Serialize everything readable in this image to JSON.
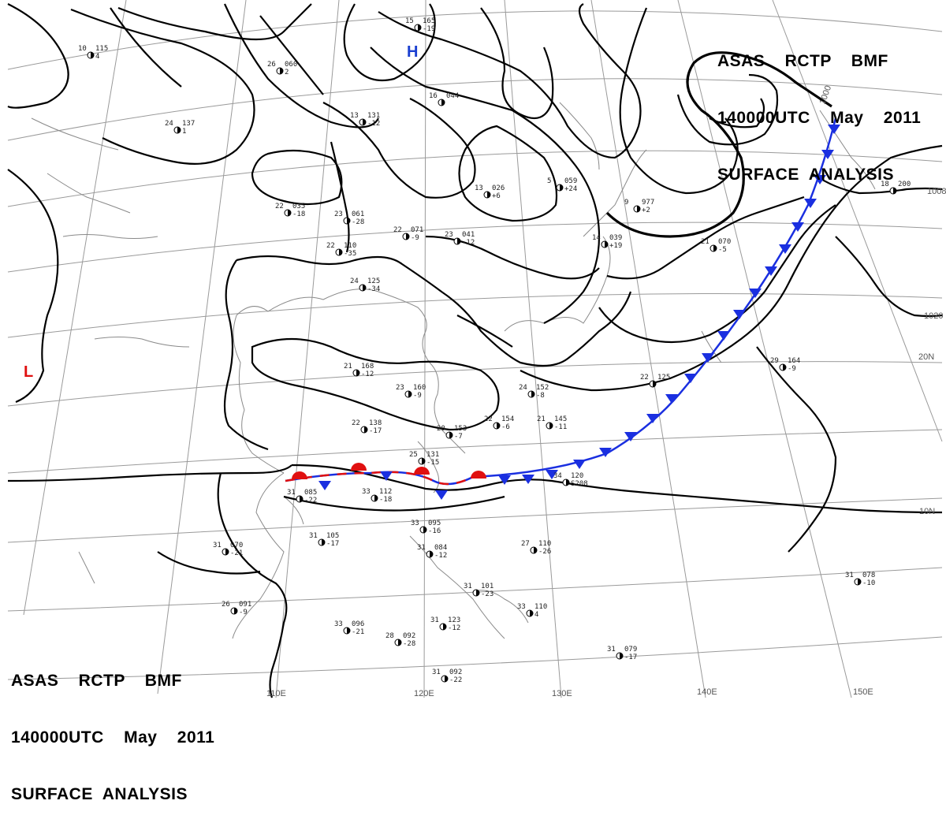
{
  "title_top": [
    "ASAS    RCTP    BMF",
    "140000UTC    May    2011",
    "SURFACE  ANALYSIS"
  ],
  "title_bottom": [
    "ASAS    RCTP    BMF",
    "140000UTC    May    2011",
    "SURFACE  ANALYSIS"
  ],
  "pressure_centers": [
    {
      "type": "H",
      "color": "#1a3fd0"
    },
    {
      "type": "L",
      "color": "#e01010"
    }
  ],
  "longitude_labels": [
    "110E",
    "120E",
    "130E",
    "140E",
    "150E"
  ],
  "latitude_labels": [
    "20N",
    "10N"
  ],
  "isobar_labels": [
    "1000",
    "1008",
    "1020"
  ],
  "front_colors": {
    "cold": "#1a2fe0",
    "warm": "#e01010"
  },
  "stations": [
    {
      "t": "26",
      "p": "060",
      "d": "2"
    },
    {
      "t": "15",
      "p": "165",
      "d": "-19"
    },
    {
      "t": "10",
      "p": "115",
      "d": "4"
    },
    {
      "t": "24",
      "p": "137",
      "d": "1"
    },
    {
      "t": "13",
      "p": "131",
      "d": "-12"
    },
    {
      "t": "16",
      "p": "044",
      "d": ""
    },
    {
      "t": "22",
      "p": "035",
      "d": "-18"
    },
    {
      "t": "23",
      "p": "061",
      "d": "-28"
    },
    {
      "t": "22",
      "p": "110",
      "d": "-35"
    },
    {
      "t": "22",
      "p": "071",
      "d": "-9"
    },
    {
      "t": "23",
      "p": "041",
      "d": "-12"
    },
    {
      "t": "24",
      "p": "125",
      "d": "-34"
    },
    {
      "t": "13",
      "p": "026",
      "d": "+6"
    },
    {
      "t": "5",
      "p": "059",
      "d": "+24"
    },
    {
      "t": "9",
      "p": "977",
      "d": "+2"
    },
    {
      "t": "21",
      "p": "070",
      "d": "-5"
    },
    {
      "t": "14",
      "p": "039",
      "d": "+19"
    },
    {
      "t": "21",
      "p": "168",
      "d": "-12"
    },
    {
      "t": "23",
      "p": "160",
      "d": "-9"
    },
    {
      "t": "22",
      "p": "138",
      "d": "-17"
    },
    {
      "t": "20",
      "p": "153",
      "d": "-7"
    },
    {
      "t": "22",
      "p": "154",
      "d": "-6"
    },
    {
      "t": "21",
      "p": "145",
      "d": "-11"
    },
    {
      "t": "24",
      "p": "152",
      "d": "-8"
    },
    {
      "t": "22",
      "p": "125",
      "d": ""
    },
    {
      "t": "34",
      "p": "120",
      "d": "S208"
    },
    {
      "t": "25",
      "p": "131",
      "d": "-15"
    },
    {
      "t": "33",
      "p": "112",
      "d": "-18"
    },
    {
      "t": "31",
      "p": "085",
      "d": "-22"
    },
    {
      "t": "31",
      "p": "105",
      "d": "-17"
    },
    {
      "t": "31",
      "p": "070",
      "d": "-21"
    },
    {
      "t": "33",
      "p": "095",
      "d": "-16"
    },
    {
      "t": "31",
      "p": "084",
      "d": "-12"
    },
    {
      "t": "27",
      "p": "110",
      "d": "-26"
    },
    {
      "t": "26",
      "p": "091",
      "d": "-9"
    },
    {
      "t": "33",
      "p": "096",
      "d": "-21"
    },
    {
      "t": "28",
      "p": "092",
      "d": "-28"
    },
    {
      "t": "31",
      "p": "123",
      "d": "-12"
    },
    {
      "t": "31",
      "p": "101",
      "d": "-23"
    },
    {
      "t": "33",
      "p": "110",
      "d": "4"
    },
    {
      "t": "31",
      "p": "079",
      "d": "-17"
    },
    {
      "t": "31",
      "p": "078",
      "d": "-10"
    },
    {
      "t": "29",
      "p": "164",
      "d": "-9"
    },
    {
      "t": "18",
      "p": "200",
      "d": ""
    },
    {
      "t": "31",
      "p": "092",
      "d": "-22"
    }
  ]
}
